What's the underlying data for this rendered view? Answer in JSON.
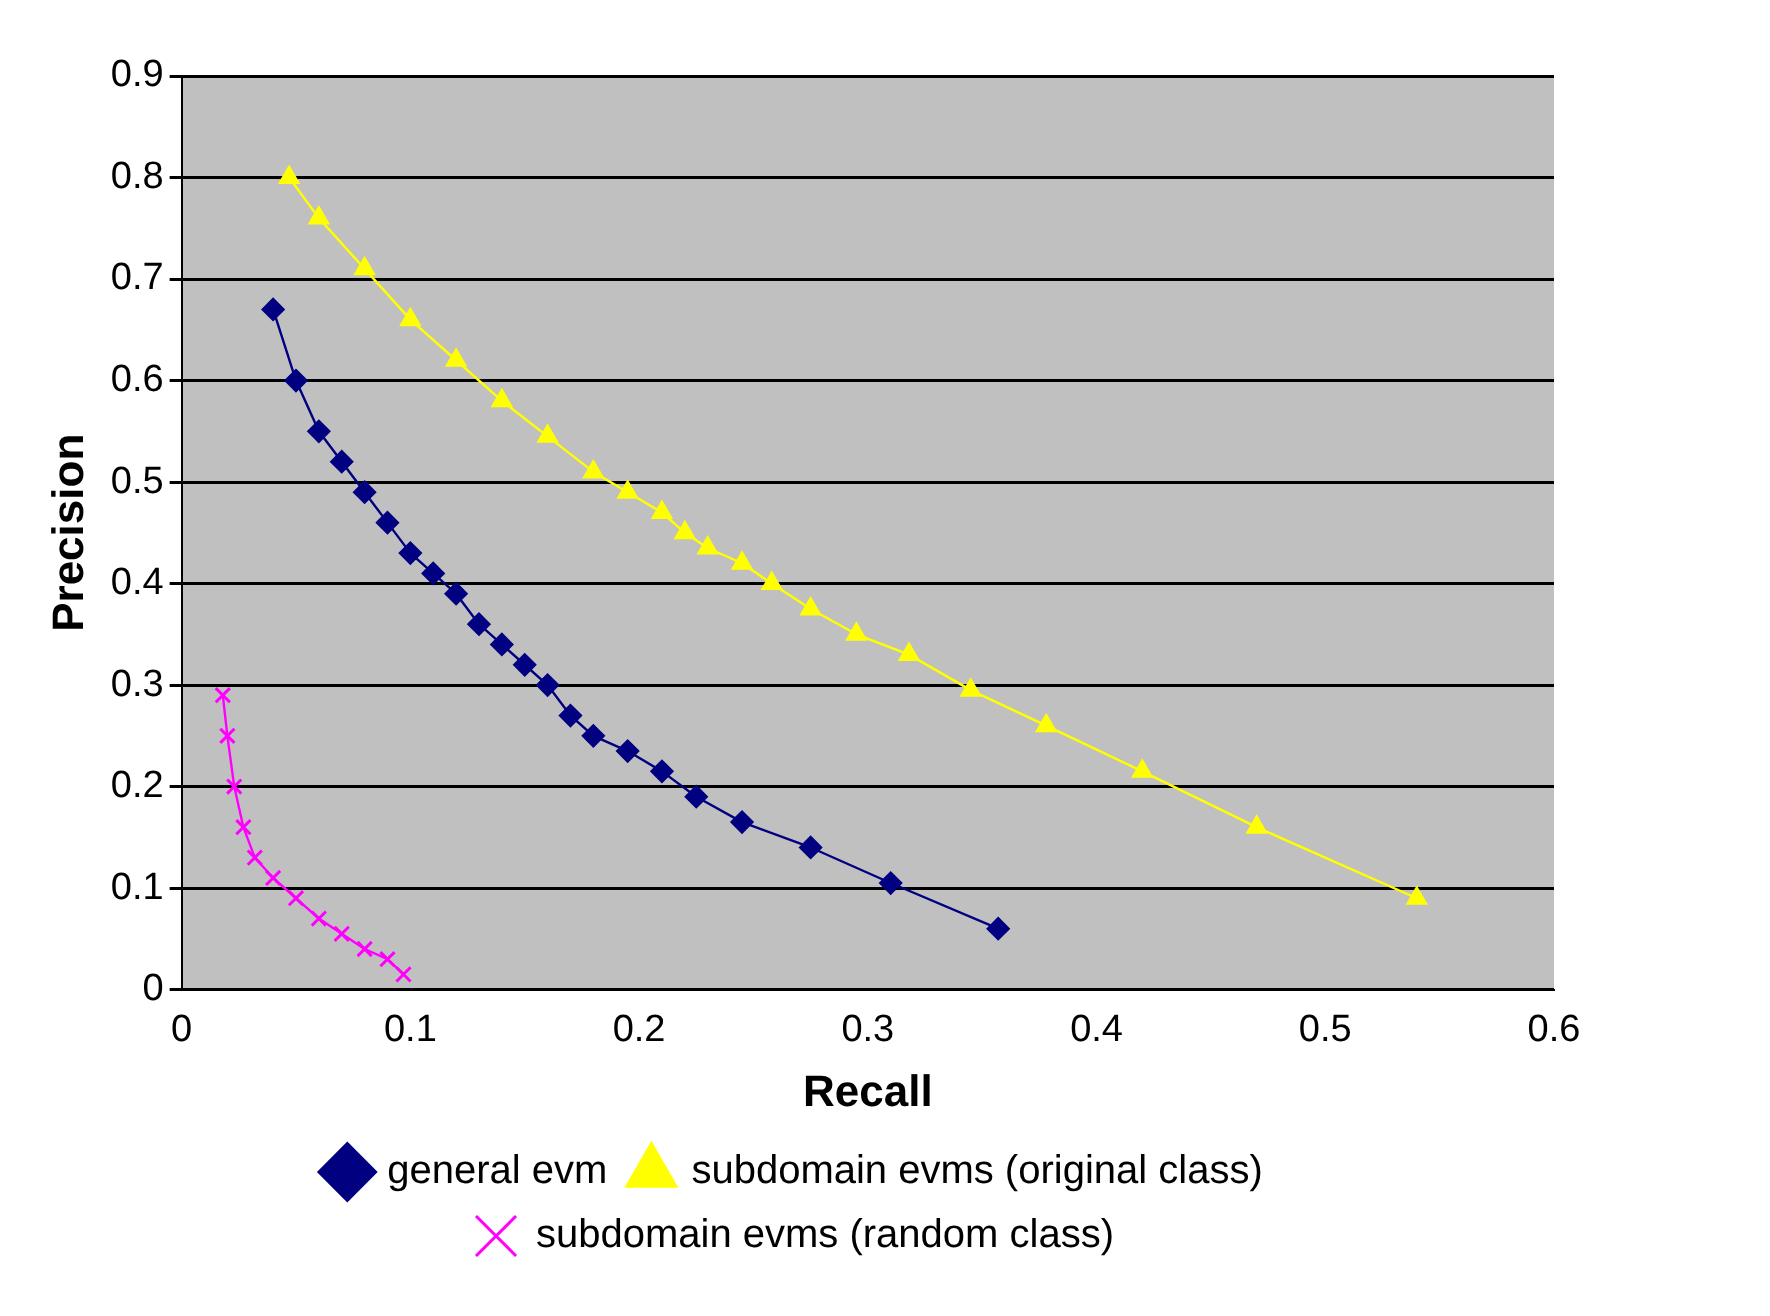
{
  "chart_data": {
    "type": "line",
    "xlabel": "Recall",
    "ylabel": "Precision",
    "xlim": [
      0,
      0.6
    ],
    "xticks": [
      0,
      0.1,
      0.2,
      0.3,
      0.4,
      0.5,
      0.6
    ],
    "ylim": [
      0,
      0.9
    ],
    "yticks": [
      0,
      0.1,
      0.2,
      0.3,
      0.4,
      0.5,
      0.6,
      0.7,
      0.8,
      0.9
    ],
    "grid": "y",
    "legend": "bottom",
    "line_style": "solid",
    "series": [
      {
        "name": "general evm",
        "color": "#000080",
        "marker": "diamond",
        "x": [
          0.04,
          0.05,
          0.06,
          0.07,
          0.08,
          0.09,
          0.1,
          0.11,
          0.12,
          0.13,
          0.14,
          0.15,
          0.16,
          0.17,
          0.18,
          0.195,
          0.21,
          0.225,
          0.245,
          0.275,
          0.31,
          0.357
        ],
        "values": [
          0.67,
          0.6,
          0.55,
          0.52,
          0.49,
          0.46,
          0.43,
          0.41,
          0.39,
          0.36,
          0.34,
          0.32,
          0.3,
          0.27,
          0.25,
          0.235,
          0.215,
          0.19,
          0.165,
          0.14,
          0.105,
          0.06
        ]
      },
      {
        "name": "subdomain evms (original class)",
        "color": "#ffff00",
        "marker": "triangle",
        "x": [
          0.047,
          0.06,
          0.08,
          0.1,
          0.12,
          0.14,
          0.16,
          0.18,
          0.195,
          0.21,
          0.22,
          0.23,
          0.245,
          0.258,
          0.275,
          0.295,
          0.318,
          0.345,
          0.378,
          0.42,
          0.47,
          0.54
        ],
        "values": [
          0.8,
          0.76,
          0.71,
          0.66,
          0.62,
          0.58,
          0.545,
          0.51,
          0.49,
          0.47,
          0.45,
          0.435,
          0.42,
          0.4,
          0.375,
          0.35,
          0.33,
          0.295,
          0.26,
          0.215,
          0.16,
          0.09
        ]
      },
      {
        "name": "subdomain evms (random class)",
        "color": "#ff00ff",
        "marker": "cross",
        "x": [
          0.018,
          0.02,
          0.023,
          0.027,
          0.032,
          0.04,
          0.05,
          0.06,
          0.07,
          0.08,
          0.09,
          0.097
        ],
        "values": [
          0.29,
          0.25,
          0.2,
          0.16,
          0.13,
          0.11,
          0.09,
          0.07,
          0.055,
          0.04,
          0.03,
          0.015
        ]
      }
    ]
  }
}
